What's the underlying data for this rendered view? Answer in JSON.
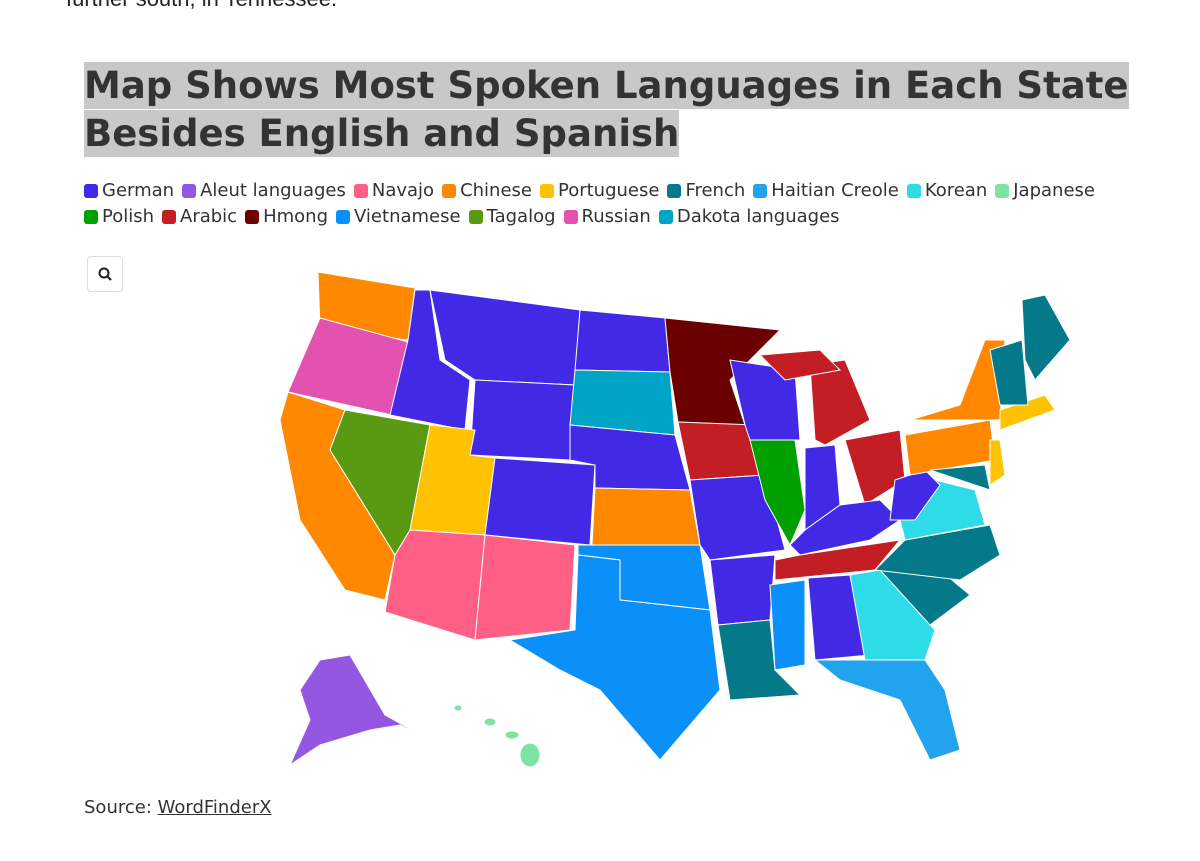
{
  "article": {
    "intro": "further south, in Tennessee."
  },
  "map": {
    "title": "Map Shows Most Spoken Languages in Each State Besides English and Spanish",
    "legend": [
      {
        "name": "German",
        "color": "#4229e6"
      },
      {
        "name": "Aleut languages",
        "color": "#9457e2"
      },
      {
        "name": "Navajo",
        "color": "#ff5f84"
      },
      {
        "name": "Chinese",
        "color": "#ff8800"
      },
      {
        "name": "Portuguese",
        "color": "#ffc200"
      },
      {
        "name": "French",
        "color": "#04798a"
      },
      {
        "name": "Haitian Creole",
        "color": "#22a3ee"
      },
      {
        "name": "Korean",
        "color": "#2fdbe6"
      },
      {
        "name": "Japanese",
        "color": "#7de4a1"
      },
      {
        "name": "Polish",
        "color": "#00a000"
      },
      {
        "name": "Arabic",
        "color": "#c21e24"
      },
      {
        "name": "Hmong",
        "color": "#6b0000"
      },
      {
        "name": "Vietnamese",
        "color": "#0a90f8"
      },
      {
        "name": "Tagalog",
        "color": "#5a9912"
      },
      {
        "name": "Russian",
        "color": "#e352b0"
      },
      {
        "name": "Dakota languages",
        "color": "#00a4c4"
      }
    ],
    "source_label": "Source:",
    "source_link": "WordFinderX"
  }
}
